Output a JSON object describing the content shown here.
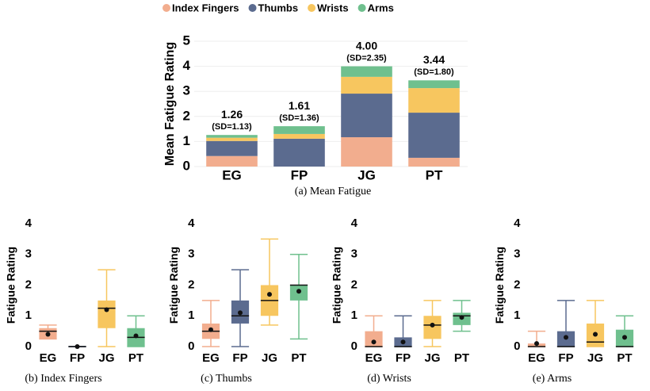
{
  "chart_data": [
    {
      "type": "stacked_bar",
      "y_label": "Mean Fatigue Rating",
      "caption": "(a) Mean Fatigue",
      "categories": [
        "EG",
        "FP",
        "JG",
        "PT"
      ],
      "series": [
        {
          "name": "Index Fingers",
          "color": "#f2ad8e",
          "values": [
            0.42,
            0,
            1.17,
            0.35
          ]
        },
        {
          "name": "Thumbs",
          "color": "#5b6b8f",
          "values": [
            0.6,
            1.11,
            1.74,
            1.8
          ]
        },
        {
          "name": "Wrists",
          "color": "#f7c65f",
          "values": [
            0.13,
            0.19,
            0.67,
            0.98
          ]
        },
        {
          "name": "Arms",
          "color": "#6fc08e",
          "values": [
            0.11,
            0.31,
            0.42,
            0.31
          ]
        }
      ],
      "totals": [
        1.26,
        1.61,
        4,
        3.44
      ],
      "total_labels": [
        "1.26",
        "1.61",
        "4.00",
        "3.44"
      ],
      "sd_labels": [
        "(SD=1.13)",
        "(SD=1.36)",
        "(SD=2.35)",
        "(SD=1.80)"
      ],
      "ylim": [
        0,
        5
      ],
      "yticks": [
        0,
        1,
        2,
        3,
        4,
        5
      ],
      "grid": true
    },
    {
      "type": "box",
      "y_label": "Fatigue Rating",
      "caption": "(b) Index Fingers",
      "categories": [
        "EG",
        "FP",
        "JG",
        "PT"
      ],
      "colors": [
        "#f2ad8e",
        "#5b6b8f",
        "#f7c65f",
        "#6fc08e"
      ],
      "whisker_low": [
        0.25,
        0,
        0,
        0
      ],
      "q1": [
        0.25,
        0,
        0.6,
        0
      ],
      "median": [
        0.5,
        0,
        1.25,
        0.3
      ],
      "q3": [
        0.6,
        0,
        1.5,
        0.6
      ],
      "whisker_high": [
        0.7,
        0,
        2.5,
        1
      ],
      "mean": [
        0.4,
        0,
        1.2,
        0.35
      ],
      "ylim": [
        0,
        4
      ],
      "yticks": [
        0,
        1,
        2,
        3,
        4
      ],
      "grid": false
    },
    {
      "type": "box",
      "y_label": "Fatigue Rating",
      "caption": "(c) Thumbs",
      "categories": [
        "EG",
        "FP",
        "JG",
        "PT"
      ],
      "colors": [
        "#f2ad8e",
        "#5b6b8f",
        "#f7c65f",
        "#6fc08e"
      ],
      "whisker_low": [
        0,
        0,
        0.7,
        0.25
      ],
      "q1": [
        0.25,
        0.75,
        1,
        1.5
      ],
      "median": [
        0.5,
        1,
        1.5,
        2
      ],
      "q3": [
        0.75,
        1.5,
        2,
        2
      ],
      "whisker_high": [
        1.5,
        2.5,
        3.5,
        3
      ],
      "mean": [
        0.55,
        1.1,
        1.7,
        1.8
      ],
      "ylim": [
        0,
        4
      ],
      "yticks": [
        0,
        1,
        2,
        3,
        4
      ],
      "grid": false
    },
    {
      "type": "box",
      "y_label": "Fatigue Rating",
      "caption": "(d) Wrists",
      "categories": [
        "EG",
        "FP",
        "JG",
        "PT"
      ],
      "colors": [
        "#f2ad8e",
        "#5b6b8f",
        "#f7c65f",
        "#6fc08e"
      ],
      "whisker_low": [
        0,
        0,
        0,
        0.5
      ],
      "q1": [
        0,
        0,
        0.25,
        0.7
      ],
      "median": [
        0,
        0,
        0.7,
        1
      ],
      "q3": [
        0.5,
        0.3,
        1,
        1.1
      ],
      "whisker_high": [
        1,
        1,
        1.5,
        1.5
      ],
      "mean": [
        0.15,
        0.15,
        0.7,
        0.95
      ],
      "ylim": [
        0,
        4
      ],
      "yticks": [
        0,
        1,
        2,
        3,
        4
      ],
      "grid": false
    },
    {
      "type": "box",
      "y_label": "Fatigue Rating",
      "caption": "(e) Arms",
      "categories": [
        "EG",
        "FP",
        "JG",
        "PT"
      ],
      "colors": [
        "#f2ad8e",
        "#5b6b8f",
        "#f7c65f",
        "#6fc08e"
      ],
      "whisker_low": [
        0,
        0,
        0,
        0
      ],
      "q1": [
        0,
        0,
        0,
        0
      ],
      "median": [
        0,
        0,
        0.15,
        0
      ],
      "q3": [
        0.1,
        0.5,
        0.75,
        0.55
      ],
      "whisker_high": [
        0.5,
        1.5,
        1.5,
        1
      ],
      "mean": [
        0.1,
        0.3,
        0.4,
        0.3
      ],
      "ylim": [
        0,
        4
      ],
      "yticks": [
        0,
        1,
        2,
        3,
        4
      ],
      "grid": false
    }
  ]
}
